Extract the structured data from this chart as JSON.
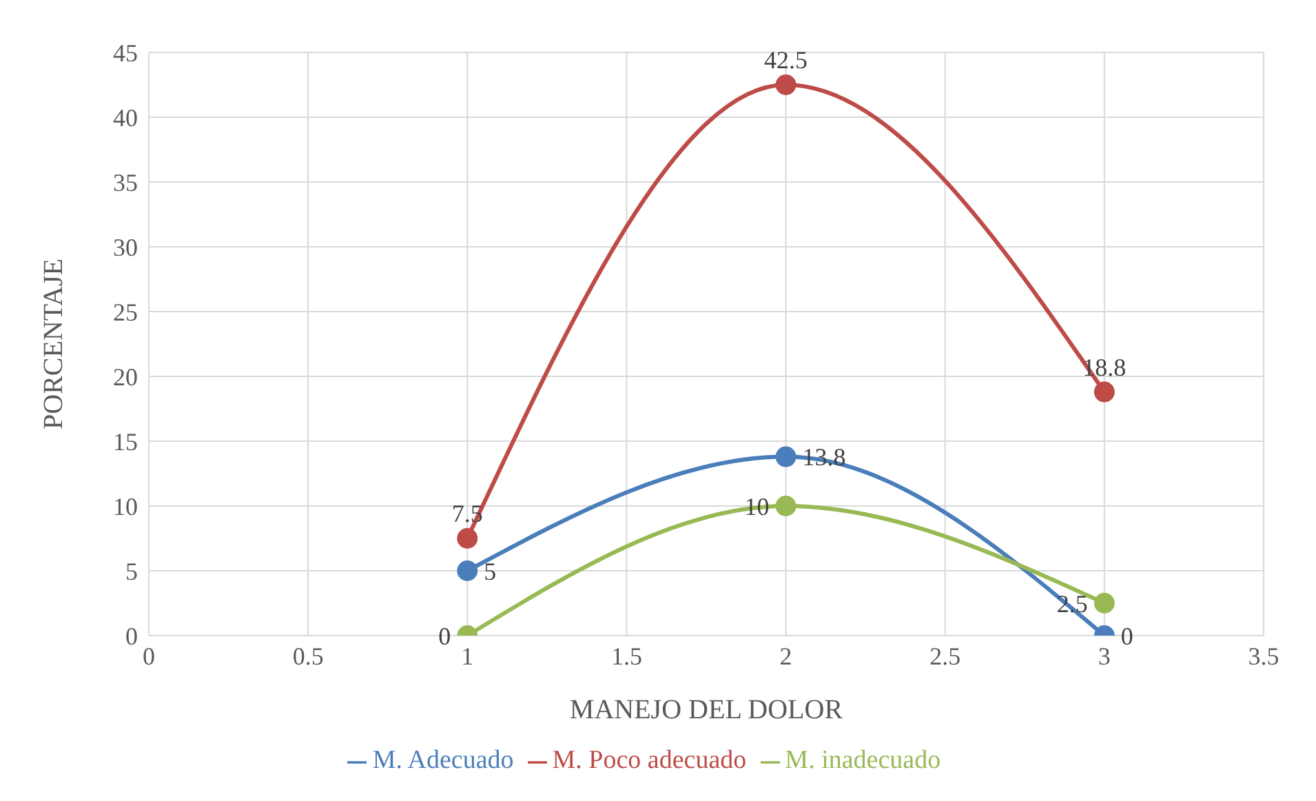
{
  "chart_data": {
    "type": "line",
    "x": [
      1,
      2,
      3
    ],
    "xlabel": "MANEJO DEL DOLOR",
    "ylabel": "PORCENTAJE",
    "xlim": [
      0,
      3.5
    ],
    "xticks": [
      0,
      0.5,
      1,
      1.5,
      2,
      2.5,
      3,
      3.5
    ],
    "ylim": [
      0,
      45
    ],
    "yticks": [
      0,
      5,
      10,
      15,
      20,
      25,
      30,
      35,
      40,
      45
    ],
    "grid": true,
    "legend": "bottom",
    "marker": "circle",
    "line_style": "solid",
    "data_labels": true,
    "series": [
      {
        "name": "M. Adecuado",
        "color": "#4a7ebb",
        "values": [
          5,
          13.8,
          0
        ]
      },
      {
        "name": "M. Poco adecuado",
        "color": "#be4b48",
        "values": [
          7.5,
          42.5,
          18.8
        ]
      },
      {
        "name": "M. inadecuado",
        "color": "#98b954",
        "values": [
          0,
          10,
          2.5
        ]
      }
    ]
  }
}
